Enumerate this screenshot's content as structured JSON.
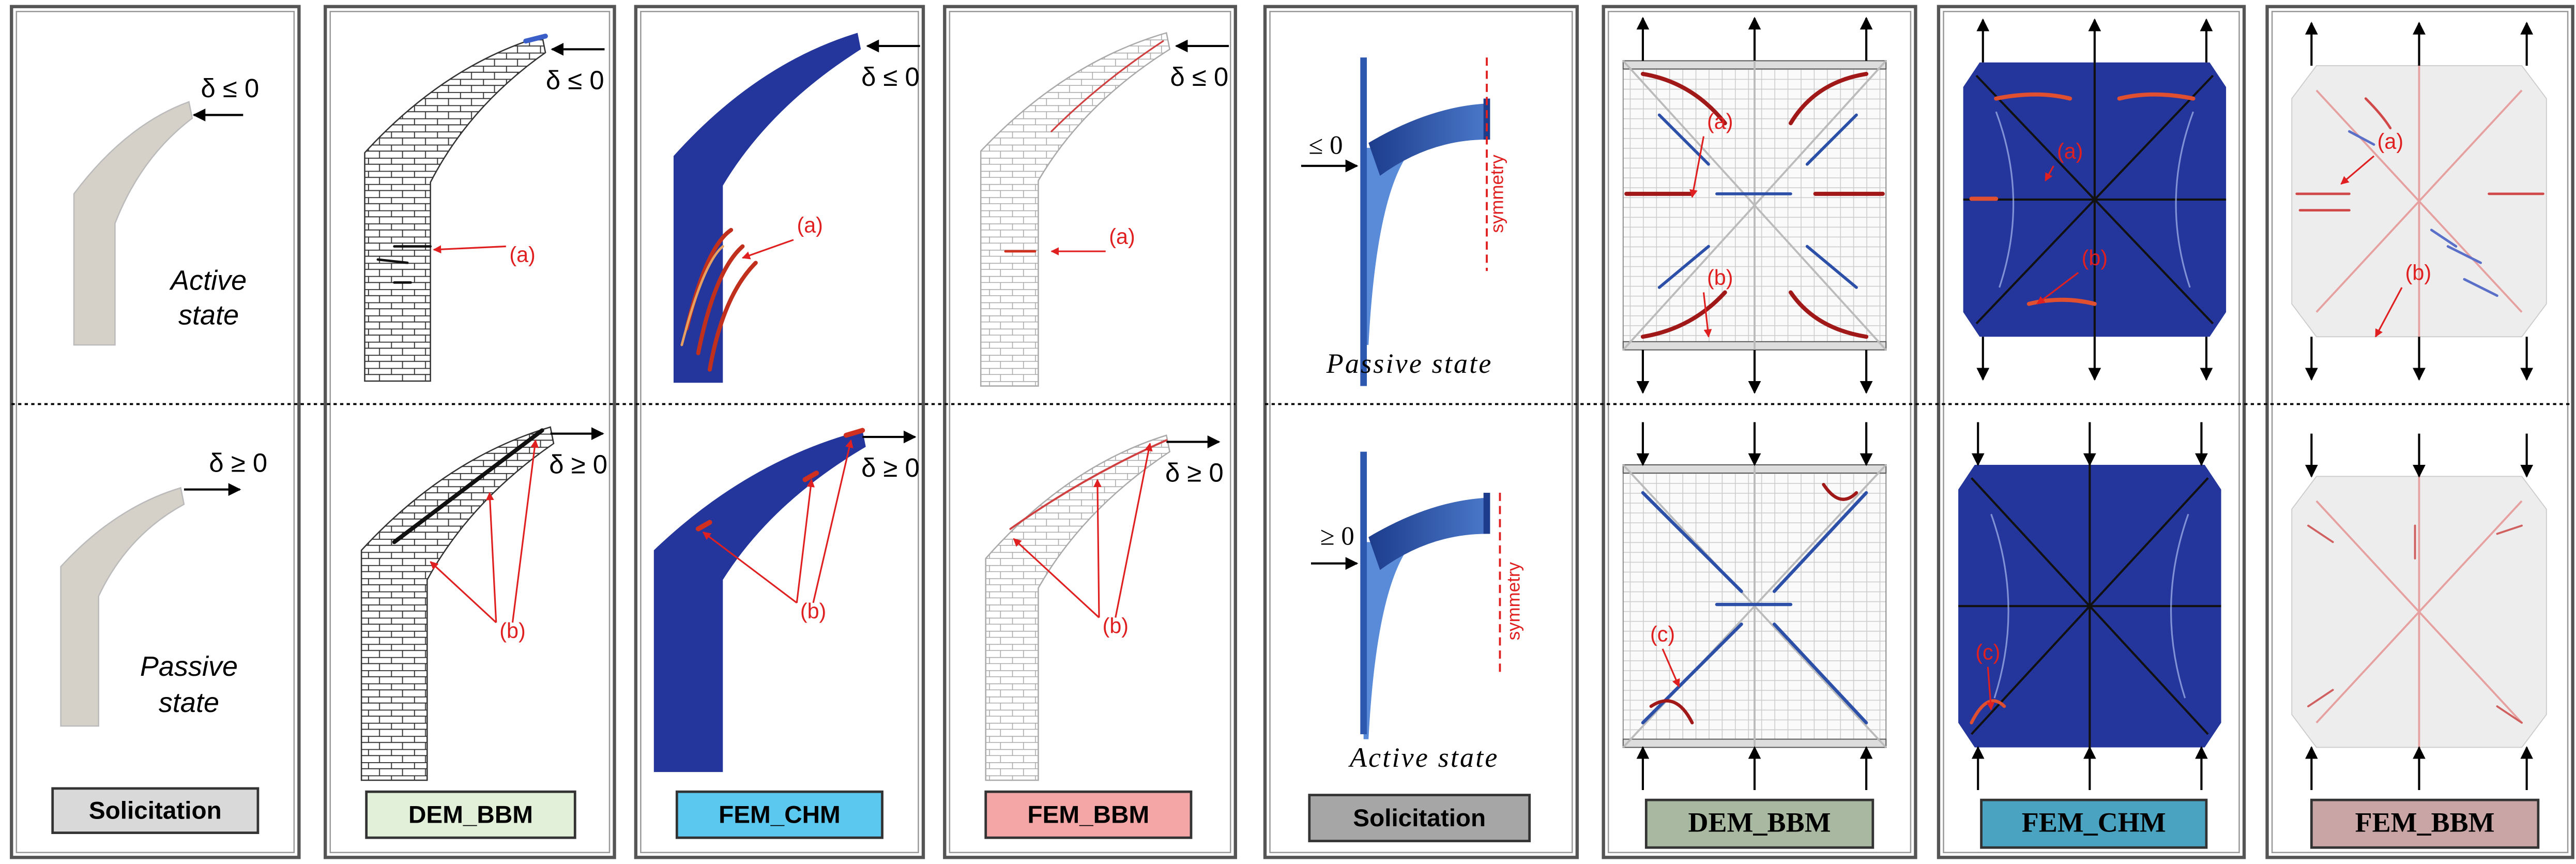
{
  "panels": [
    {
      "top_delta": "δ ≤ 0",
      "top_state": [
        "Active",
        "state"
      ],
      "bottom_delta": "δ ≥ 0",
      "bottom_state": [
        "Passive",
        "state"
      ],
      "label": "Solicitation"
    },
    {
      "top_delta": "δ ≤ 0",
      "top_note": "(a)",
      "bottom_delta": "δ ≥ 0",
      "bottom_note": "(b)",
      "label": "DEM_BBM"
    },
    {
      "top_delta": "δ ≤ 0",
      "top_note": "(a)",
      "bottom_delta": "δ ≥ 0",
      "bottom_note": "(b)",
      "label": "FEM_CHM"
    },
    {
      "top_delta": "δ ≤ 0",
      "top_note": "(a)",
      "bottom_delta": "δ ≥ 0",
      "bottom_note": "(b)",
      "label": "FEM_BBM"
    },
    {
      "top_load": "≤ 0",
      "top_symmetry": "symmetry",
      "top_state": "Passive state",
      "bottom_load": "≥ 0",
      "bottom_symmetry": "symmetry",
      "bottom_state": "Active state",
      "label": "Solicitation"
    },
    {
      "top_notes": [
        "(a)",
        "(b)"
      ],
      "bottom_notes": [
        "(c)"
      ],
      "label": "DEM_BBM"
    },
    {
      "top_notes": [
        "(a)",
        "(b)"
      ],
      "bottom_notes": [
        "(c)"
      ],
      "label": "FEM_CHM"
    },
    {
      "top_notes": [
        "(a)",
        "(b)"
      ],
      "label": "FEM_BBM"
    }
  ]
}
